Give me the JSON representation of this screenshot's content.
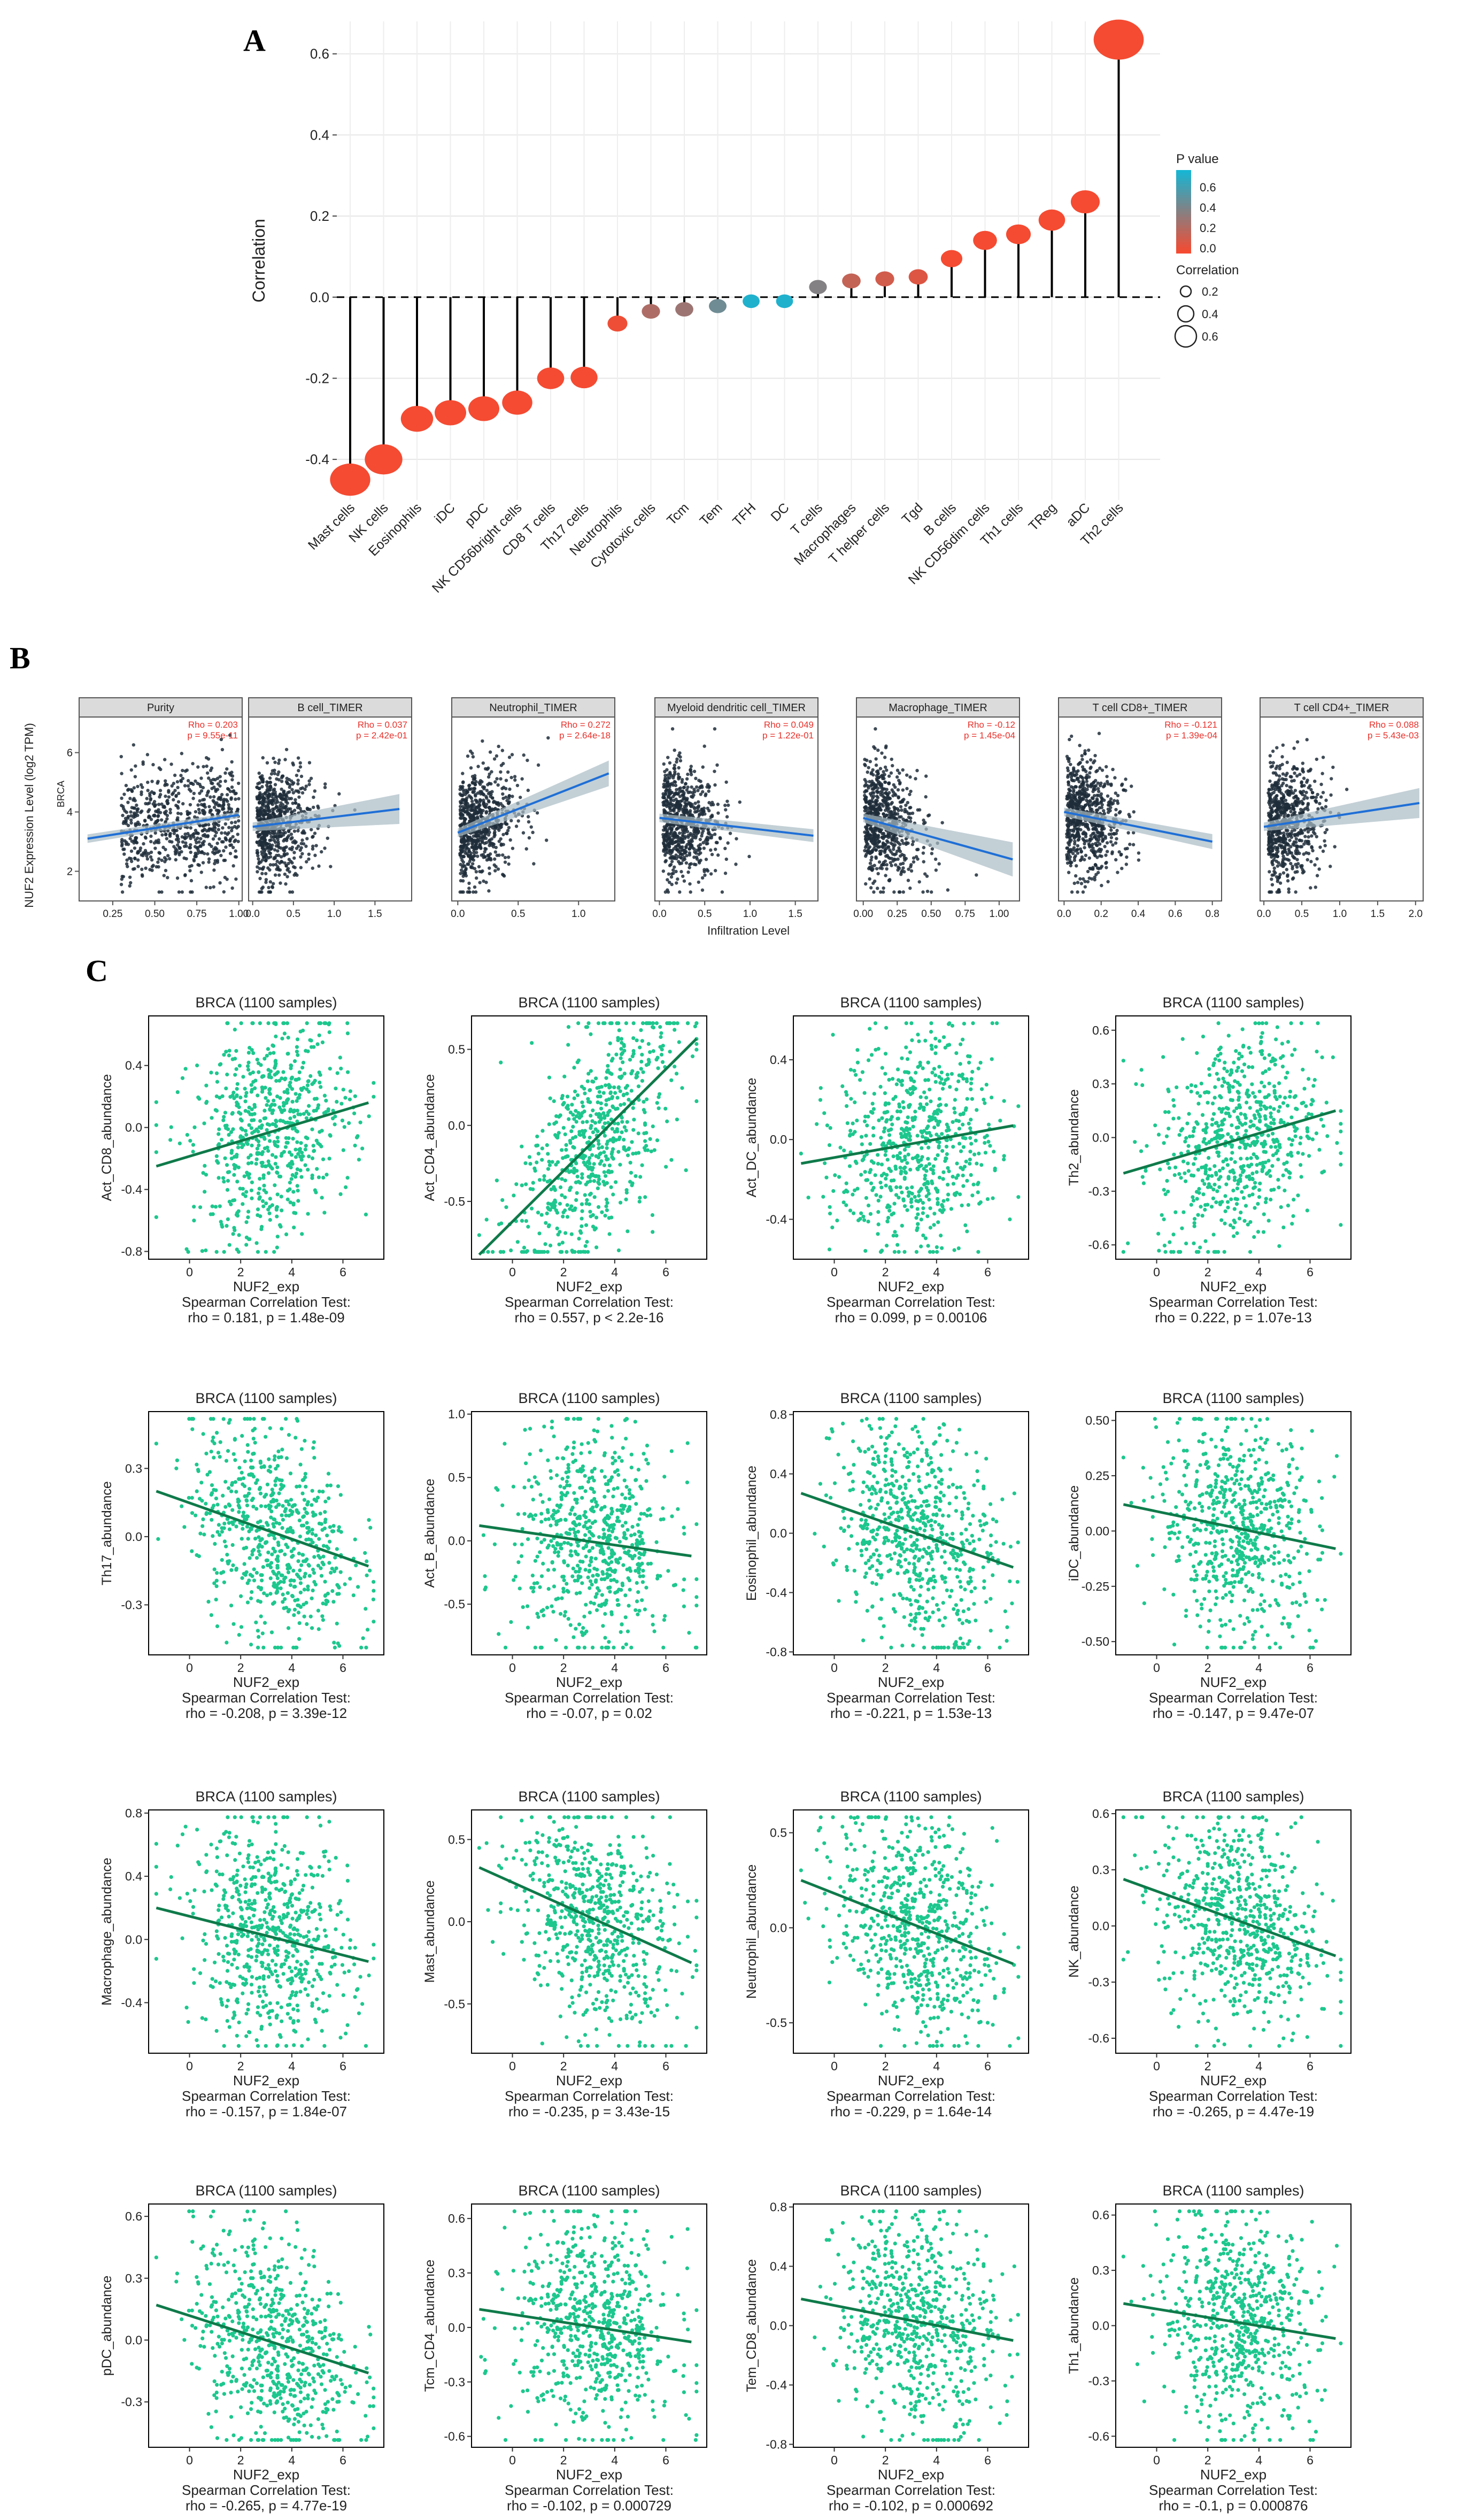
{
  "panels": {
    "a": "A",
    "b": "B",
    "c": "C"
  },
  "chart_data": [
    {
      "type": "lollipop",
      "panel": "A",
      "ylabel": "Correlation",
      "ylim": [
        -0.5,
        0.68
      ],
      "yticks": [
        -0.4,
        -0.2,
        0.0,
        0.2,
        0.4,
        0.6
      ],
      "ytick_labels": [
        "-0.4",
        "-0.2",
        "0.0",
        "0.2",
        "0.4",
        "0.6"
      ],
      "categories": [
        "Mast cells",
        "NK cells",
        "Eosinophils",
        "iDC",
        "pDC",
        "NK CD56bright cells",
        "CD8 T cells",
        "Th17 cells",
        "Neutrophils",
        "Cytotoxic cells",
        "Tcm",
        "Tem",
        "TFH",
        "DC",
        "T cells",
        "Macrophages",
        "T helper cells",
        "Tgd",
        "B cells",
        "NK CD56dim cells",
        "Th1 cells",
        "TReg",
        "aDC",
        "Th2 cells"
      ],
      "values": [
        -0.45,
        -0.4,
        -0.3,
        -0.285,
        -0.275,
        -0.26,
        -0.2,
        -0.198,
        -0.065,
        -0.035,
        -0.03,
        -0.022,
        -0.01,
        -0.01,
        0.025,
        0.04,
        0.045,
        0.05,
        0.095,
        0.14,
        0.155,
        0.19,
        0.235,
        0.635
      ],
      "pvalues": [
        0.0,
        0.0,
        0.0,
        0.0,
        0.0,
        0.0,
        0.0,
        0.0,
        0.02,
        0.24,
        0.3,
        0.45,
        0.72,
        0.72,
        0.38,
        0.17,
        0.12,
        0.08,
        0.0,
        0.0,
        0.0,
        0.0,
        0.0,
        0.0
      ],
      "legend": {
        "pvalue_title": "P value",
        "pvalue_ticks": [
          "0.6",
          "0.4",
          "0.2",
          "0.0"
        ],
        "corr_title": "Correlation",
        "corr_ticks": [
          "0.2",
          "0.4",
          "0.6"
        ],
        "placement": "right"
      },
      "colors": {
        "low_p": "#f44b32",
        "high_p": "#17b5d3",
        "stem": "#000000"
      }
    },
    {
      "type": "scatter-facets",
      "panel": "B",
      "ylabel": "NUF2 Expression Level (log2 TPM)",
      "xlabel": "Infiltration Level",
      "side_label": "BRCA",
      "ylim": [
        1,
        7.2
      ],
      "yticks": [
        2,
        4,
        6
      ],
      "facets": [
        {
          "title": "Purity",
          "rho": "Rho = 0.203",
          "p": "p = 9.55e-11",
          "xlim": [
            0.05,
            1.02
          ],
          "xticks": [
            0.25,
            0.5,
            0.75,
            1.0
          ],
          "xtick_labels": [
            "0.25",
            "0.50",
            "0.75",
            "1.00"
          ],
          "line": [
            [
              0.1,
              3.1
            ],
            [
              1.0,
              3.9
            ]
          ],
          "band": 0.15
        },
        {
          "title": "B cell_TIMER",
          "rho": "Rho = 0.037",
          "p": "p = 2.42e-01",
          "xlim": [
            -0.05,
            1.95
          ],
          "xticks": [
            0.0,
            0.5,
            1.0,
            1.5
          ],
          "xtick_labels": [
            "0.0",
            "0.5",
            "1.0",
            "1.5"
          ],
          "line": [
            [
              0.0,
              3.5
            ],
            [
              1.8,
              4.1
            ]
          ],
          "band": 0.7
        },
        {
          "title": "Neutrophil_TIMER",
          "rho": "Rho = 0.272",
          "p": "p = 2.64e-18",
          "xlim": [
            -0.05,
            1.3
          ],
          "xticks": [
            0.0,
            0.5,
            1.0
          ],
          "xtick_labels": [
            "0.0",
            "0.5",
            "1.0"
          ],
          "line": [
            [
              0.0,
              3.3
            ],
            [
              1.25,
              5.3
            ]
          ],
          "band": 0.6
        },
        {
          "title": "Myeloid dendritic cell_TIMER",
          "rho": "Rho = 0.049",
          "p": "p = 1.22e-01",
          "xlim": [
            -0.05,
            1.75
          ],
          "xticks": [
            0.0,
            0.5,
            1.0,
            1.5
          ],
          "xtick_labels": [
            "0.0",
            "0.5",
            "1.0",
            "1.5"
          ],
          "line": [
            [
              0.0,
              3.8
            ],
            [
              1.7,
              3.2
            ]
          ],
          "band": 0.3
        },
        {
          "title": "Macrophage_TIMER",
          "rho": "Rho = -0.12",
          "p": "p = 1.45e-04",
          "xlim": [
            -0.05,
            1.15
          ],
          "xticks": [
            0.0,
            0.25,
            0.5,
            0.75,
            1.0
          ],
          "xtick_labels": [
            "0.00",
            "0.25",
            "0.50",
            "0.75",
            "1.00"
          ],
          "line": [
            [
              0.0,
              3.8
            ],
            [
              1.1,
              2.4
            ]
          ],
          "band": 0.8
        },
        {
          "title": "T cell CD8+_TIMER",
          "rho": "Rho = -0.121",
          "p": "p = 1.39e-04",
          "xlim": [
            -0.03,
            0.85
          ],
          "xticks": [
            0.0,
            0.2,
            0.4,
            0.6,
            0.8
          ],
          "xtick_labels": [
            "0.0",
            "0.2",
            "0.4",
            "0.6",
            "0.8"
          ],
          "line": [
            [
              0.0,
              4.0
            ],
            [
              0.8,
              3.0
            ]
          ],
          "band": 0.35
        },
        {
          "title": "T cell CD4+_TIMER",
          "rho": "Rho = 0.088",
          "p": "p = 5.43e-03",
          "xlim": [
            -0.05,
            2.1
          ],
          "xticks": [
            0.0,
            0.5,
            1.0,
            1.5,
            2.0
          ],
          "xtick_labels": [
            "0.0",
            "0.5",
            "1.0",
            "1.5",
            "2.0"
          ],
          "line": [
            [
              0.0,
              3.5
            ],
            [
              2.05,
              4.3
            ]
          ],
          "band": 0.7
        }
      ],
      "colors": {
        "points": "#1f2d3a",
        "line": "#1f6fd6",
        "band": "#a9bcc4",
        "strip": "#dbdbdb",
        "stat": "#e8302a"
      }
    },
    {
      "type": "scatter-grid",
      "panel": "C",
      "xlabel": "NUF2_exp",
      "xlim": [
        -1.6,
        7.6
      ],
      "xticks": [
        0,
        2,
        4,
        6
      ],
      "test_label": "Spearman Correlation Test:",
      "plots": [
        {
          "title": "BRCA (1100 samples)",
          "ylabel": "Act_CD8_abundance",
          "ylim": [
            -0.85,
            0.72
          ],
          "yticks": [
            -0.8,
            -0.4,
            0.0,
            0.4
          ],
          "ytick_labels": [
            "-0.8",
            "-0.4",
            "0.0",
            "0.4"
          ],
          "line": [
            [
              -1.3,
              -0.25
            ],
            [
              7.0,
              0.16
            ]
          ],
          "stat": "rho = 0.181, p = 1.48e-09"
        },
        {
          "title": "BRCA (1100 samples)",
          "ylabel": "Act_CD4_abundance",
          "ylim": [
            -0.88,
            0.72
          ],
          "yticks": [
            -0.5,
            0.0,
            0.5
          ],
          "ytick_labels": [
            "-0.5",
            "0.0",
            "0.5"
          ],
          "line": [
            [
              -1.3,
              -0.85
            ],
            [
              7.2,
              0.57
            ]
          ],
          "stat": "rho = 0.557, p < 2.2e-16"
        },
        {
          "title": "BRCA (1100 samples)",
          "ylabel": "Act_DC_abundance",
          "ylim": [
            -0.6,
            0.62
          ],
          "yticks": [
            -0.4,
            0.0,
            0.4
          ],
          "ytick_labels": [
            "-0.4",
            "0.0",
            "0.4"
          ],
          "line": [
            [
              -1.3,
              -0.12
            ],
            [
              7.0,
              0.07
            ]
          ],
          "stat": "rho = 0.099, p = 0.00106"
        },
        {
          "title": "BRCA (1100 samples)",
          "ylabel": "Th2_abundance",
          "ylim": [
            -0.68,
            0.68
          ],
          "yticks": [
            -0.6,
            -0.3,
            0.0,
            0.3,
            0.6
          ],
          "ytick_labels": [
            "-0.6",
            "-0.3",
            "0.0",
            "0.3",
            "0.6"
          ],
          "line": [
            [
              -1.3,
              -0.2
            ],
            [
              7.0,
              0.15
            ]
          ],
          "stat": "rho = 0.222, p = 1.07e-13"
        },
        {
          "title": "BRCA (1100 samples)",
          "ylabel": "Th17_abundance",
          "ylim": [
            -0.52,
            0.55
          ],
          "yticks": [
            -0.3,
            0.0,
            0.3
          ],
          "ytick_labels": [
            "-0.3",
            "0.0",
            "0.3"
          ],
          "line": [
            [
              -1.3,
              0.2
            ],
            [
              7.0,
              -0.13
            ]
          ],
          "stat": "rho = -0.208, p = 3.39e-12"
        },
        {
          "title": "BRCA (1100 samples)",
          "ylabel": "Act_B_abundance",
          "ylim": [
            -0.9,
            1.02
          ],
          "yticks": [
            -0.5,
            0.0,
            0.5,
            1.0
          ],
          "ytick_labels": [
            "-0.5",
            "0.0",
            "0.5",
            "1.0"
          ],
          "line": [
            [
              -1.3,
              0.12
            ],
            [
              7.0,
              -0.12
            ]
          ],
          "stat": "rho = -0.07, p = 0.02"
        },
        {
          "title": "BRCA (1100 samples)",
          "ylabel": "Eosinophil_abundance",
          "ylim": [
            -0.82,
            0.82
          ],
          "yticks": [
            -0.8,
            -0.4,
            0.0,
            0.4,
            0.8
          ],
          "ytick_labels": [
            "-0.8",
            "-0.4",
            "0.0",
            "0.4",
            "0.8"
          ],
          "line": [
            [
              -1.3,
              0.27
            ],
            [
              7.0,
              -0.23
            ]
          ],
          "stat": "rho = -0.221, p = 1.53e-13"
        },
        {
          "title": "BRCA (1100 samples)",
          "ylabel": "iDC_abundance",
          "ylim": [
            -0.56,
            0.54
          ],
          "yticks": [
            -0.5,
            -0.25,
            0.0,
            0.25,
            0.5
          ],
          "ytick_labels": [
            "-0.50",
            "-0.25",
            "0.00",
            "0.25",
            "0.50"
          ],
          "line": [
            [
              -1.3,
              0.12
            ],
            [
              7.0,
              -0.08
            ]
          ],
          "stat": "rho = -0.147, p = 9.47e-07"
        },
        {
          "title": "BRCA (1100 samples)",
          "ylabel": "Macrophage_abundance",
          "ylim": [
            -0.72,
            0.82
          ],
          "yticks": [
            -0.4,
            0.0,
            0.4,
            0.8
          ],
          "ytick_labels": [
            "-0.4",
            "0.0",
            "0.4",
            "0.8"
          ],
          "line": [
            [
              -1.3,
              0.2
            ],
            [
              7.0,
              -0.14
            ]
          ],
          "stat": "rho = -0.157, p = 1.84e-07"
        },
        {
          "title": "BRCA (1100 samples)",
          "ylabel": "Mast_abundance",
          "ylim": [
            -0.8,
            0.68
          ],
          "yticks": [
            -0.5,
            0.0,
            0.5
          ],
          "ytick_labels": [
            "-0.5",
            "0.0",
            "0.5"
          ],
          "line": [
            [
              -1.3,
              0.33
            ],
            [
              7.0,
              -0.25
            ]
          ],
          "stat": "rho = -0.235, p = 3.43e-15"
        },
        {
          "title": "BRCA (1100 samples)",
          "ylabel": "Neutrophil_abundance",
          "ylim": [
            -0.66,
            0.62
          ],
          "yticks": [
            -0.5,
            0.0,
            0.5
          ],
          "ytick_labels": [
            "-0.5",
            "0.0",
            "0.5"
          ],
          "line": [
            [
              -1.3,
              0.25
            ],
            [
              7.0,
              -0.19
            ]
          ],
          "stat": "rho = -0.229, p = 1.64e-14"
        },
        {
          "title": "BRCA (1100 samples)",
          "ylabel": "NK_abundance",
          "ylim": [
            -0.68,
            0.62
          ],
          "yticks": [
            -0.6,
            -0.3,
            0.0,
            0.3,
            0.6
          ],
          "ytick_labels": [
            "-0.6",
            "-0.3",
            "0.0",
            "0.3",
            "0.6"
          ],
          "line": [
            [
              -1.3,
              0.25
            ],
            [
              7.0,
              -0.16
            ]
          ],
          "stat": "rho = -0.265, p = 4.47e-19"
        },
        {
          "title": "BRCA (1100 samples)",
          "ylabel": "pDC_abundance",
          "ylim": [
            -0.52,
            0.66
          ],
          "yticks": [
            -0.3,
            0.0,
            0.3,
            0.6
          ],
          "ytick_labels": [
            "-0.3",
            "0.0",
            "0.3",
            "0.6"
          ],
          "line": [
            [
              -1.3,
              0.17
            ],
            [
              7.0,
              -0.16
            ]
          ],
          "stat": "rho = -0.265, p = 4.77e-19"
        },
        {
          "title": "BRCA (1100 samples)",
          "ylabel": "Tcm_CD4_abundance",
          "ylim": [
            -0.66,
            0.68
          ],
          "yticks": [
            -0.6,
            -0.3,
            0.0,
            0.3,
            0.6
          ],
          "ytick_labels": [
            "-0.6",
            "-0.3",
            "0.0",
            "0.3",
            "0.6"
          ],
          "line": [
            [
              -1.3,
              0.1
            ],
            [
              7.0,
              -0.08
            ]
          ],
          "stat": "rho = -0.102, p = 0.000729"
        },
        {
          "title": "BRCA (1100 samples)",
          "ylabel": "Tem_CD8_abundance",
          "ylim": [
            -0.82,
            0.82
          ],
          "yticks": [
            -0.8,
            -0.4,
            0.0,
            0.4,
            0.8
          ],
          "ytick_labels": [
            "-0.8",
            "-0.4",
            "0.0",
            "0.4",
            "0.8"
          ],
          "line": [
            [
              -1.3,
              0.18
            ],
            [
              7.0,
              -0.1
            ]
          ],
          "stat": "rho = -0.102, p = 0.000692"
        },
        {
          "title": "BRCA (1100 samples)",
          "ylabel": "Th1_abundance",
          "ylim": [
            -0.66,
            0.66
          ],
          "yticks": [
            -0.6,
            -0.3,
            0.0,
            0.3,
            0.6
          ],
          "ytick_labels": [
            "-0.6",
            "-0.3",
            "0.0",
            "0.3",
            "0.6"
          ],
          "line": [
            [
              -1.3,
              0.12
            ],
            [
              7.0,
              -0.07
            ]
          ],
          "stat": "rho = -0.1, p = 0.000876"
        }
      ],
      "colors": {
        "points": "#1dc78e",
        "line": "#0f7a4a",
        "frame": "#000000"
      }
    }
  ]
}
